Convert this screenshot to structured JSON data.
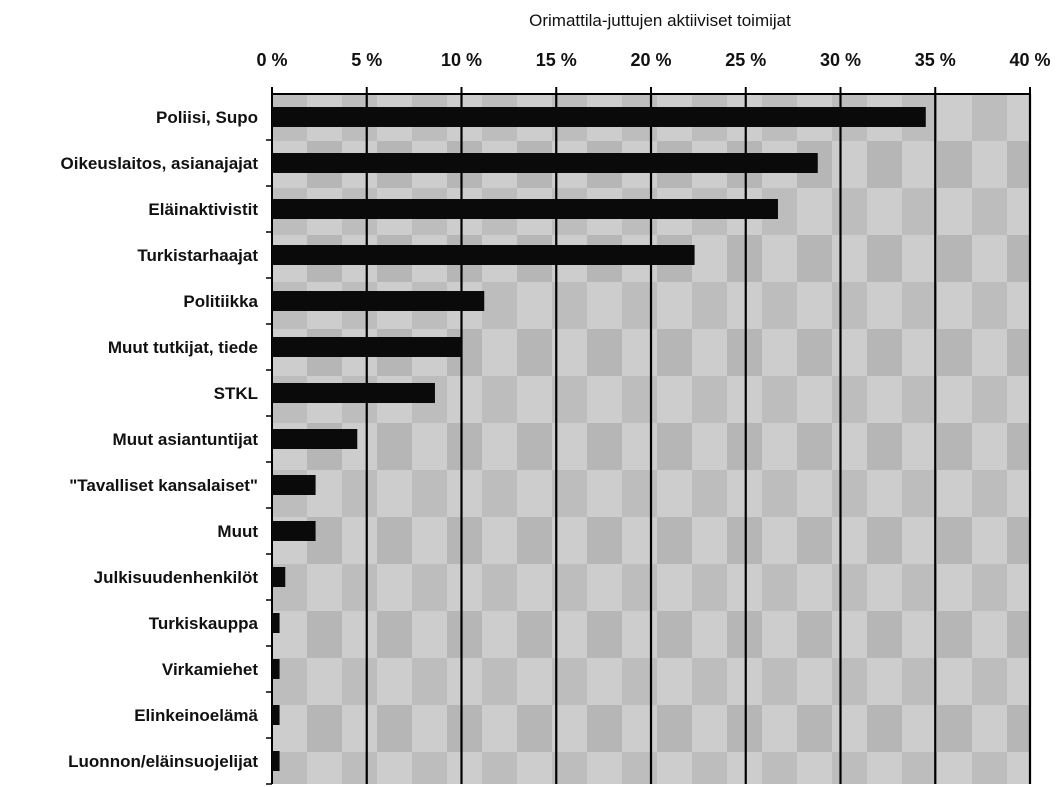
{
  "chart_data": {
    "type": "bar",
    "orientation": "horizontal",
    "title": "Orimattila-juttujen aktiiviset toimijat",
    "x_tick_labels": [
      "0 %",
      "5 %",
      "10 %",
      "15 %",
      "20 %",
      "25 %",
      "30 %",
      "35 %",
      "40 %"
    ],
    "xlim": [
      0,
      40
    ],
    "x_axis_position": "top",
    "grid": true,
    "categories": [
      "Poliisi, Supo",
      "Oikeuslaitos, asianajajat",
      "Eläinaktivistit",
      "Turkistarhaajat",
      "Politiikka",
      "Muut tutkijat, tiede",
      "STKL",
      "Muut asiantuntijat",
      "\"Tavalliset kansalaiset\"",
      "Muut",
      "Julkisuudenhenkilöt",
      "Turkiskauppa",
      "Virkamiehet",
      "Elinkeinoelämä",
      "Luonnon/eläinsuojelijat"
    ],
    "values": [
      34.5,
      28.8,
      26.7,
      22.3,
      11.2,
      10.0,
      8.6,
      4.5,
      2.3,
      2.3,
      0.7,
      0.4,
      0.4,
      0.4,
      0.4
    ],
    "colors": {
      "bar": "#0a0a0a",
      "plot_background": "#c9c9c9",
      "plot_stripe": "#b3b3b3",
      "gridline": "#000000"
    }
  }
}
